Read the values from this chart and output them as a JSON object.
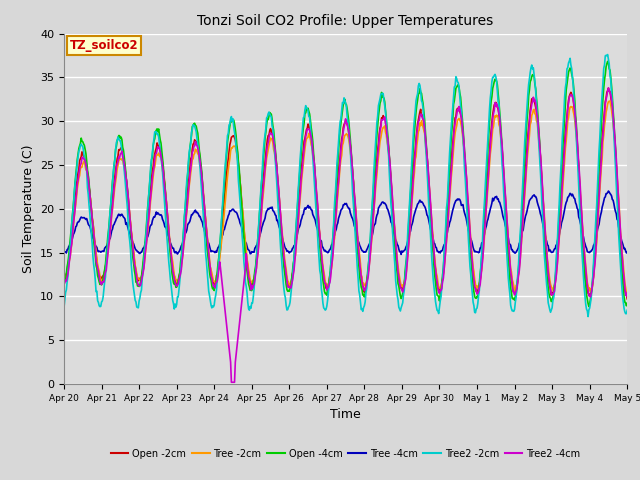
{
  "title": "Tonzi Soil CO2 Profile: Upper Temperatures",
  "xlabel": "Time",
  "ylabel": "Soil Temperature (C)",
  "ylim": [
    0,
    40
  ],
  "xlim": [
    0,
    15
  ],
  "fig_bg": "#d8d8d8",
  "plot_bg": "#dcdcdc",
  "annotation_text": "TZ_soilco2",
  "annotation_color": "#cc0000",
  "annotation_bg": "#ffffcc",
  "annotation_border": "#cc8800",
  "series": [
    {
      "label": "Open -2cm",
      "color": "#cc0000"
    },
    {
      "label": "Tree -2cm",
      "color": "#ff9900"
    },
    {
      "label": "Open -4cm",
      "color": "#00cc00"
    },
    {
      "label": "Tree -4cm",
      "color": "#0000bb"
    },
    {
      "label": "Tree2 -2cm",
      "color": "#00cccc"
    },
    {
      "label": "Tree2 -4cm",
      "color": "#cc00cc"
    }
  ],
  "xtick_labels": [
    "Apr 20",
    "Apr 21",
    "Apr 22",
    "Apr 23",
    "Apr 24",
    "Apr 25",
    "Apr 26",
    "Apr 27",
    "Apr 28",
    "Apr 29",
    "Apr 30",
    "May 1",
    "May 2",
    "May 3",
    "May 4",
    "May 5"
  ],
  "yticks": [
    0,
    5,
    10,
    15,
    20,
    25,
    30,
    35,
    40
  ],
  "grid_color": "#c8c8c8",
  "linewidth": 1.2
}
